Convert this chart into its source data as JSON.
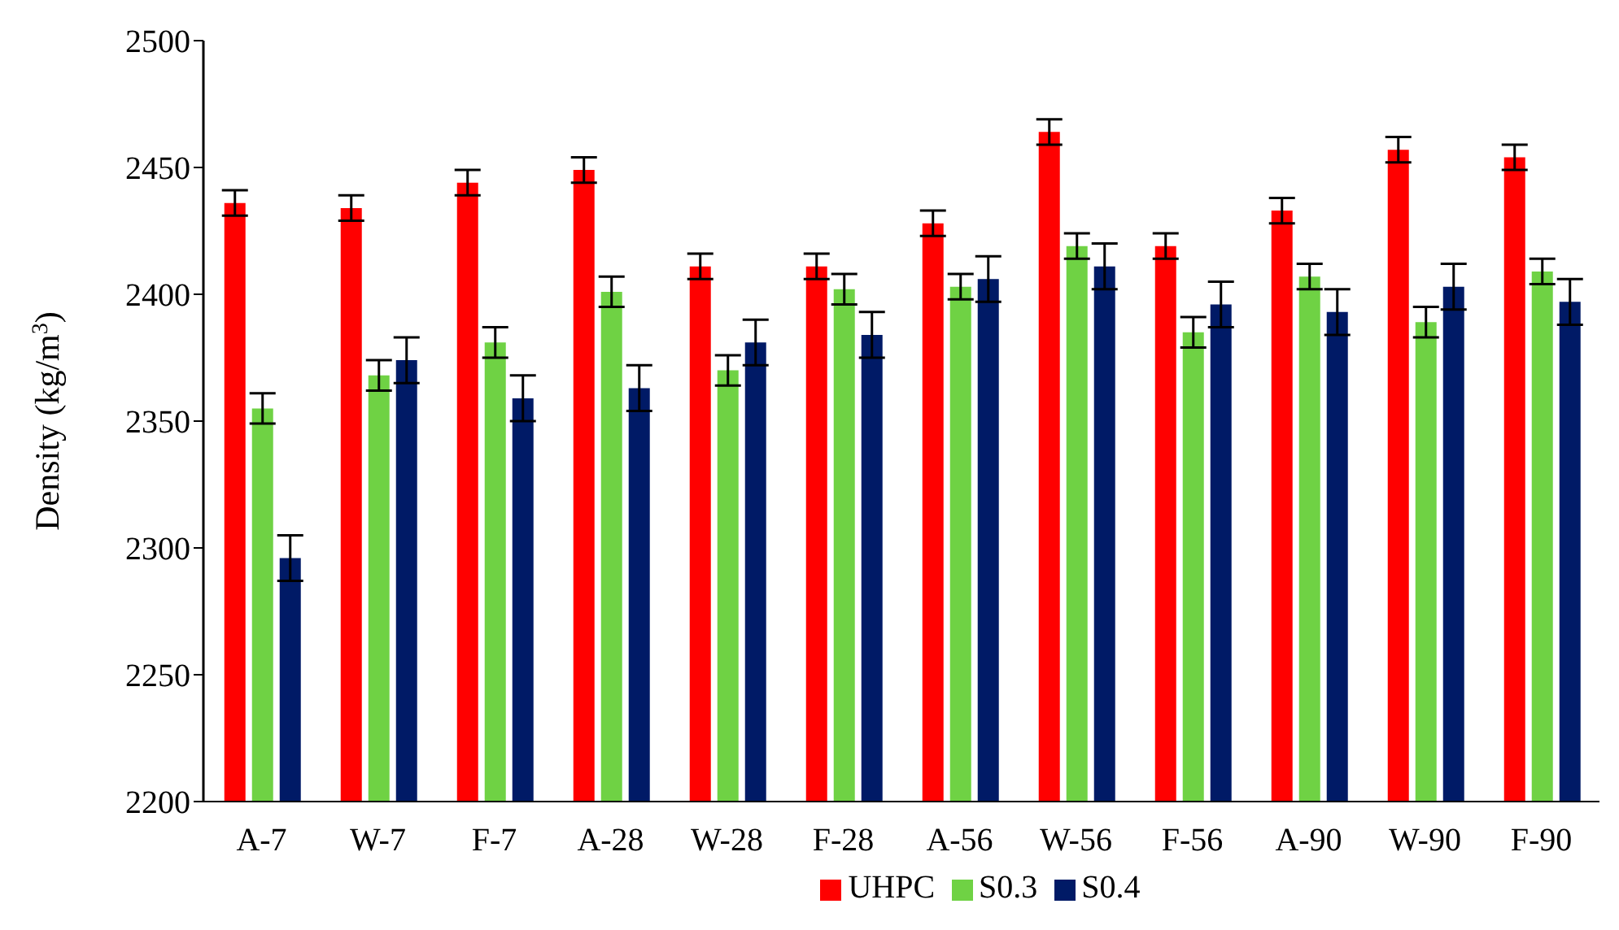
{
  "chart_data": {
    "type": "bar",
    "ylabel": "Density (kg/m$^{3}$)",
    "categories": [
      "A-7",
      "W-7",
      "F-7",
      "A-28",
      "W-28",
      "F-28",
      "A-56",
      "W-56",
      "F-56",
      "A-90",
      "W-90",
      "F-90"
    ],
    "series": [
      {
        "name": "UHPC",
        "color": "#ff0000",
        "values": [
          2436,
          2434,
          2444,
          2449,
          2411,
          2411,
          2428,
          2464,
          2419,
          2433,
          2457,
          2454
        ],
        "errors": [
          5,
          5,
          5,
          5,
          5,
          5,
          5,
          5,
          5,
          5,
          5,
          5
        ]
      },
      {
        "name": "S0.3",
        "color": "#6fd244",
        "values": [
          2355,
          2368,
          2381,
          2401,
          2370,
          2402,
          2403,
          2419,
          2385,
          2407,
          2389,
          2409
        ],
        "errors": [
          6,
          6,
          6,
          6,
          6,
          6,
          5,
          5,
          6,
          5,
          6,
          5
        ]
      },
      {
        "name": "S0.4",
        "color": "#001a66",
        "values": [
          2296,
          2374,
          2359,
          2363,
          2381,
          2384,
          2406,
          2411,
          2396,
          2393,
          2403,
          2397
        ],
        "errors": [
          9,
          9,
          9,
          9,
          9,
          9,
          9,
          9,
          9,
          9,
          9,
          9
        ]
      }
    ],
    "ylim": [
      2200,
      2500
    ],
    "yticks": [
      2200,
      2250,
      2300,
      2350,
      2400,
      2450,
      2500
    ],
    "grid": false,
    "legend": "bottom"
  }
}
